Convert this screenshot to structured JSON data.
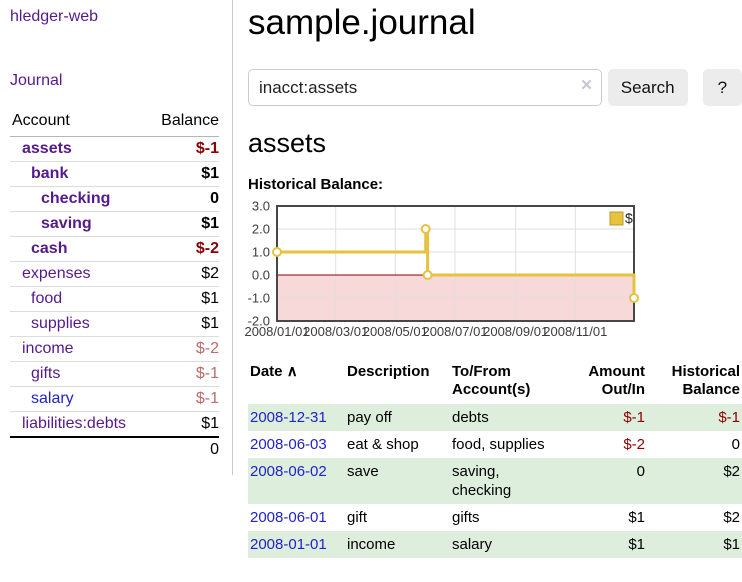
{
  "sidebar": {
    "app_title": "hledger-web",
    "journal_link": "Journal",
    "table": {
      "col_account": "Account",
      "col_balance": "Balance",
      "accounts": [
        {
          "name": "assets",
          "indent": 1,
          "bold": true,
          "balance": "$-1",
          "neg": true
        },
        {
          "name": "bank",
          "indent": 2,
          "bold": true,
          "balance": "$1"
        },
        {
          "name": "checking",
          "indent": 3,
          "bold": true,
          "balance": "0"
        },
        {
          "name": "saving",
          "indent": 3,
          "bold": true,
          "balance": "$1"
        },
        {
          "name": "cash",
          "indent": 2,
          "bold": true,
          "balance": "$-2",
          "neg": true
        },
        {
          "name": "expenses",
          "indent": 1,
          "bold": false,
          "balance": "$2"
        },
        {
          "name": "food",
          "indent": 2,
          "bold": false,
          "balance": "$1"
        },
        {
          "name": "supplies",
          "indent": 2,
          "bold": false,
          "balance": "$1"
        },
        {
          "name": "income",
          "indent": 1,
          "bold": false,
          "balance": "$-2",
          "neg": true
        },
        {
          "name": "gifts",
          "indent": 2,
          "bold": false,
          "balance": "$-1",
          "neg": true
        },
        {
          "name": "salary",
          "indent": 2,
          "bold": false,
          "balance": "$-1",
          "neg": true,
          "blue": true
        },
        {
          "name": "liabilities:debts",
          "indent": 1,
          "bold": false,
          "balance": "$1"
        }
      ],
      "total": "0"
    }
  },
  "main": {
    "title": "sample.journal",
    "search": {
      "value": "inacct:assets",
      "clear_icon": "✕",
      "button": "Search",
      "help_button": "?"
    },
    "account_heading": "assets",
    "chart_label": "Historical Balance:"
  },
  "register": {
    "headers": {
      "date": "Date",
      "sort_icon": "∧",
      "description": "Description",
      "accounts": "To/From Account(s)",
      "amount": "Amount Out/In",
      "balance": "Historical Balance"
    },
    "rows": [
      {
        "date": "2008-12-31",
        "description": "pay off",
        "accounts": "debts",
        "amount": "$-1",
        "balance": "$-1"
      },
      {
        "date": "2008-06-03",
        "description": "eat & shop",
        "accounts": "food, supplies",
        "amount": "$-2",
        "balance": "0"
      },
      {
        "date": "2008-06-02",
        "description": "save",
        "accounts": "saving, checking",
        "amount": "0",
        "balance": "$2"
      },
      {
        "date": "2008-06-01",
        "description": "gift",
        "accounts": "gifts",
        "amount": "$1",
        "balance": "$2"
      },
      {
        "date": "2008-01-01",
        "description": "income",
        "accounts": "salary",
        "amount": "$1",
        "balance": "$1"
      }
    ]
  },
  "chart_data": {
    "type": "line",
    "step": true,
    "title": "Historical Balance",
    "series": [
      {
        "name": "$",
        "color": "#e6c23f",
        "points": [
          [
            "2008-01-01",
            1
          ],
          [
            "2008-06-01",
            2
          ],
          [
            "2008-06-03",
            0
          ],
          [
            "2008-12-31",
            -1
          ]
        ]
      }
    ],
    "x_range": [
      "2008-01-01",
      "2008-12-31"
    ],
    "x_ticks": [
      {
        "date": "2008-01-01",
        "label": "2008/01/01"
      },
      {
        "date": "2008-03-01",
        "label": "2008/03/01"
      },
      {
        "date": "2008-05-01",
        "label": "2008/05/01"
      },
      {
        "date": "2008-07-01",
        "label": "2008/07/01"
      },
      {
        "date": "2008-09-01",
        "label": "2008/09/01"
      },
      {
        "date": "2008-11-01",
        "label": "2008/11/01"
      }
    ],
    "y_ticks": [
      3.0,
      2.0,
      1.0,
      0.0,
      -1.0,
      -2.0
    ],
    "ylim": [
      -2,
      3
    ],
    "grid": true,
    "legend_position": "top-right",
    "colors": {
      "negative_region": "#f8d9d9",
      "zero_line": "#8b0000",
      "gridline": "#e0e0e0",
      "plot_border": "#474747",
      "legend_swatch_border": "#b89a2e"
    }
  }
}
